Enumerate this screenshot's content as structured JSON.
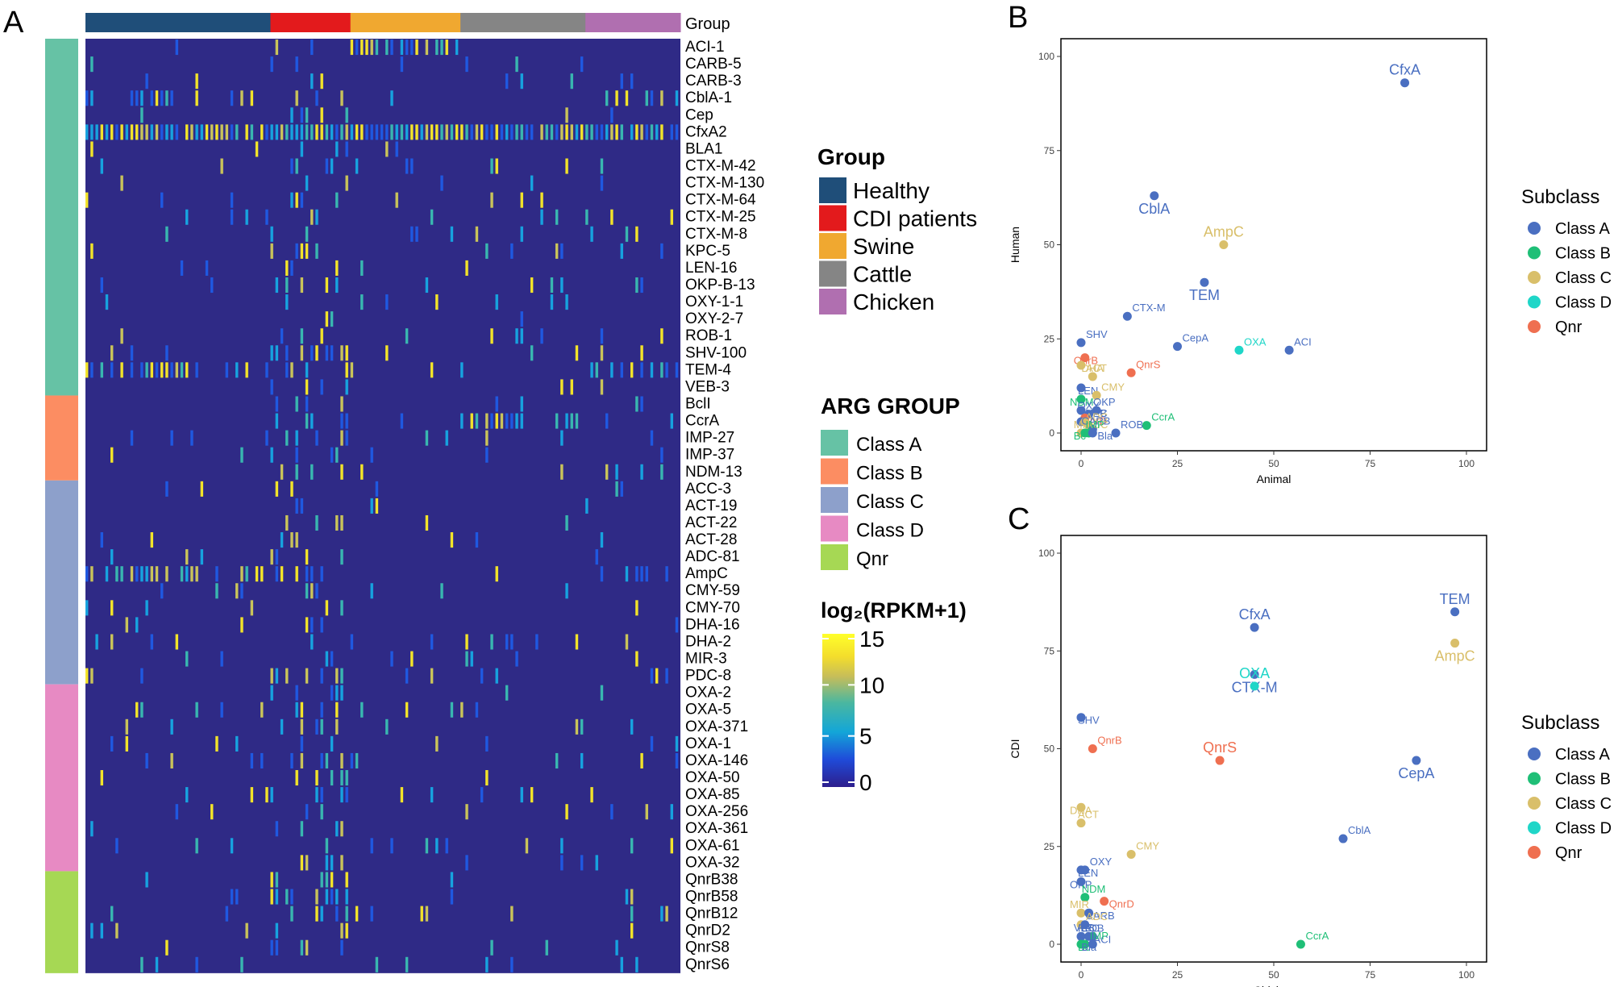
{
  "panel_labels": {
    "a": "A",
    "b": "B",
    "c": "C"
  },
  "heatmap": {
    "group_header": "Group",
    "arg_labels": [
      "ACI-1",
      "CARB-5",
      "CARB-3",
      "CblA-1",
      "Cep",
      "CfxA2",
      "BLA1",
      "CTX-M-42",
      "CTX-M-130",
      "CTX-M-64",
      "CTX-M-25",
      "CTX-M-8",
      "KPC-5",
      "LEN-16",
      "OKP-B-13",
      "OXY-1-1",
      "OXY-2-7",
      "ROB-1",
      "SHV-100",
      "TEM-4",
      "VEB-3",
      "BclI",
      "CcrA",
      "IMP-27",
      "IMP-37",
      "NDM-13",
      "ACC-3",
      "ACT-19",
      "ACT-22",
      "ACT-28",
      "ADC-81",
      "AmpC",
      "CMY-59",
      "CMY-70",
      "DHA-16",
      "DHA-2",
      "MIR-3",
      "PDC-8",
      "OXA-2",
      "OXA-5",
      "OXA-371",
      "OXA-1",
      "OXA-146",
      "OXA-50",
      "OXA-85",
      "OXA-256",
      "OXA-361",
      "OXA-61",
      "OXA-32",
      "QnrB38",
      "QnrB58",
      "QnrB12",
      "QnrD2",
      "QnrS8",
      "QnrS6"
    ],
    "row_class_index": [
      0,
      0,
      0,
      0,
      0,
      0,
      0,
      0,
      0,
      0,
      0,
      0,
      0,
      0,
      0,
      0,
      0,
      0,
      0,
      0,
      0,
      1,
      1,
      1,
      1,
      1,
      2,
      2,
      2,
      2,
      2,
      2,
      2,
      2,
      2,
      2,
      2,
      2,
      3,
      3,
      3,
      3,
      3,
      3,
      3,
      3,
      3,
      3,
      3,
      4,
      4,
      4,
      4,
      4,
      4
    ],
    "groups": [
      {
        "name": "Healthy",
        "color": "#1f4e79",
        "n": 37
      },
      {
        "name": "CDI patients",
        "color": "#e31a1c",
        "n": 16
      },
      {
        "name": "Swine",
        "color": "#f0a830",
        "n": 22
      },
      {
        "name": "Cattle",
        "color": "#858585",
        "n": 25
      },
      {
        "name": "Chicken",
        "color": "#b06fb0",
        "n": 19
      }
    ],
    "arg_group_title": "ARG GROUP",
    "arg_classes": [
      {
        "name": "Class A",
        "color": "#66c2a5"
      },
      {
        "name": "Class B",
        "color": "#fc8d62"
      },
      {
        "name": "Class C",
        "color": "#8da0cb"
      },
      {
        "name": "Class D",
        "color": "#e78ac3"
      },
      {
        "name": "Qnr",
        "color": "#a6d854"
      }
    ],
    "group_legend_title": "Group",
    "colorbar": {
      "title": "log₂(RPKM+1)",
      "ticks": [
        "15",
        "10",
        "5",
        "0"
      ],
      "min": 0,
      "max": 15
    }
  },
  "chart_data": [
    {
      "type": "scatter",
      "panel": "B",
      "xlabel": "Animal",
      "ylabel": "Human",
      "xlim": [
        0,
        100
      ],
      "ylim": [
        0,
        100
      ],
      "xticks": [
        "0",
        "25",
        "50",
        "75",
        "100"
      ],
      "yticks": [
        "0",
        "25",
        "50",
        "75",
        "100"
      ],
      "legend_title": "Subclass",
      "legend": [
        {
          "name": "Class A",
          "color": "#4a6fc1"
        },
        {
          "name": "Class B",
          "color": "#1fbf77"
        },
        {
          "name": "Class C",
          "color": "#d9bf6a"
        },
        {
          "name": "Class D",
          "color": "#1fd6c8"
        },
        {
          "name": "Qnr",
          "color": "#ef6f50"
        }
      ],
      "points": [
        {
          "label": "CfxA",
          "x": 84,
          "y": 93,
          "cls": 0,
          "big": true
        },
        {
          "label": "CblA",
          "x": 19,
          "y": 63,
          "cls": 0,
          "big": true
        },
        {
          "label": "AmpC",
          "x": 37,
          "y": 50,
          "cls": 2,
          "big": true
        },
        {
          "label": "TEM",
          "x": 32,
          "y": 40,
          "cls": 0,
          "big": true
        },
        {
          "label": "CTX-M",
          "x": 12,
          "y": 31,
          "cls": 0
        },
        {
          "label": "CepA",
          "x": 25,
          "y": 23,
          "cls": 0
        },
        {
          "label": "ACI",
          "x": 54,
          "y": 22,
          "cls": 0
        },
        {
          "label": "OXA",
          "x": 41,
          "y": 22,
          "cls": 3
        },
        {
          "label": "SHV",
          "x": 0,
          "y": 24,
          "cls": 0
        },
        {
          "label": "QnrB",
          "x": 1,
          "y": 20,
          "cls": 4
        },
        {
          "label": "QnrS",
          "x": 13,
          "y": 16,
          "cls": 4
        },
        {
          "label": "ACT",
          "x": 0,
          "y": 18,
          "cls": 2
        },
        {
          "label": "DHA",
          "x": 3,
          "y": 15,
          "cls": 2
        },
        {
          "label": "LEN",
          "x": 0,
          "y": 12,
          "cls": 0
        },
        {
          "label": "CMY",
          "x": 4,
          "y": 10,
          "cls": 2
        },
        {
          "label": "NDM",
          "x": 0,
          "y": 9,
          "cls": 1
        },
        {
          "label": "OKP",
          "x": 4,
          "y": 6,
          "cls": 0
        },
        {
          "label": "KPC",
          "x": 0,
          "y": 6,
          "cls": 0
        },
        {
          "label": "OXY",
          "x": 2,
          "y": 5,
          "cls": 0
        },
        {
          "label": "QnrD",
          "x": 1,
          "y": 4,
          "cls": 4
        },
        {
          "label": "VEB",
          "x": 0,
          "y": 3,
          "cls": 0
        },
        {
          "label": "MIR",
          "x": 1,
          "y": 3,
          "cls": 2
        },
        {
          "label": "ADC",
          "x": 2,
          "y": 2,
          "cls": 2
        },
        {
          "label": "CcrA",
          "x": 17,
          "y": 2,
          "cls": 1
        },
        {
          "label": "CARB",
          "x": 3,
          "y": 1,
          "cls": 0
        },
        {
          "label": "ROB",
          "x": 9,
          "y": 0,
          "cls": 0
        },
        {
          "label": "ACC",
          "x": 0,
          "y": 0,
          "cls": 2
        },
        {
          "label": "Bc",
          "x": 1,
          "y": 0,
          "cls": 1
        },
        {
          "label": "IMP",
          "x": 2,
          "y": 0,
          "cls": 1
        },
        {
          "label": "Bla",
          "x": 3,
          "y": 0,
          "cls": 0
        }
      ]
    },
    {
      "type": "scatter",
      "panel": "C",
      "xlabel": "Chicken",
      "ylabel": "CDI",
      "xlim": [
        0,
        100
      ],
      "ylim": [
        0,
        100
      ],
      "xticks": [
        "0",
        "25",
        "50",
        "75",
        "100"
      ],
      "yticks": [
        "0",
        "25",
        "50",
        "75",
        "100"
      ],
      "legend_title": "Subclass",
      "legend": [
        {
          "name": "Class A",
          "color": "#4a6fc1"
        },
        {
          "name": "Class B",
          "color": "#1fbf77"
        },
        {
          "name": "Class C",
          "color": "#d9bf6a"
        },
        {
          "name": "Class D",
          "color": "#1fd6c8"
        },
        {
          "name": "Qnr",
          "color": "#ef6f50"
        }
      ],
      "points": [
        {
          "label": "TEM",
          "x": 97,
          "y": 85,
          "cls": 0,
          "big": true
        },
        {
          "label": "AmpC",
          "x": 97,
          "y": 77,
          "cls": 2,
          "big": true
        },
        {
          "label": "CfxA",
          "x": 45,
          "y": 81,
          "cls": 0,
          "big": true
        },
        {
          "label": "CTX-M",
          "x": 45,
          "y": 69,
          "cls": 0,
          "big": true
        },
        {
          "label": "OXA",
          "x": 45,
          "y": 66,
          "cls": 3,
          "big": true
        },
        {
          "label": "CepA",
          "x": 87,
          "y": 47,
          "cls": 0,
          "big": true
        },
        {
          "label": "QnrS",
          "x": 36,
          "y": 47,
          "cls": 4,
          "big": true
        },
        {
          "label": "SHV",
          "x": 0,
          "y": 58,
          "cls": 0
        },
        {
          "label": "QnrB",
          "x": 3,
          "y": 50,
          "cls": 4
        },
        {
          "label": "DHA",
          "x": 0,
          "y": 35,
          "cls": 2
        },
        {
          "label": "ACT",
          "x": 0,
          "y": 31,
          "cls": 2
        },
        {
          "label": "CblA",
          "x": 68,
          "y": 27,
          "cls": 0
        },
        {
          "label": "CMY",
          "x": 13,
          "y": 23,
          "cls": 2
        },
        {
          "label": "LEN",
          "x": 0,
          "y": 19,
          "cls": 0
        },
        {
          "label": "OXY",
          "x": 1,
          "y": 19,
          "cls": 0
        },
        {
          "label": "OKP",
          "x": 0,
          "y": 16,
          "cls": 0
        },
        {
          "label": "NDM",
          "x": 1,
          "y": 12,
          "cls": 1
        },
        {
          "label": "QnrD",
          "x": 6,
          "y": 11,
          "cls": 4
        },
        {
          "label": "MIR",
          "x": 0,
          "y": 8,
          "cls": 2
        },
        {
          "label": "CARB",
          "x": 2,
          "y": 8,
          "cls": 0
        },
        {
          "label": "ADC",
          "x": 0,
          "y": 5,
          "cls": 2
        },
        {
          "label": "VEB",
          "x": 1,
          "y": 5,
          "cls": 0
        },
        {
          "label": "KPC",
          "x": 0,
          "y": 2,
          "cls": 0
        },
        {
          "label": "ACI",
          "x": 2,
          "y": 2,
          "cls": 0
        },
        {
          "label": "ROB",
          "x": 3,
          "y": 2,
          "cls": 0
        },
        {
          "label": "Bc",
          "x": 0,
          "y": 0,
          "cls": 1
        },
        {
          "label": "IMP",
          "x": 1,
          "y": 0,
          "cls": 1
        },
        {
          "label": "Bla",
          "x": 3,
          "y": 0,
          "cls": 0
        },
        {
          "label": "CcrA",
          "x": 57,
          "y": 0,
          "cls": 1
        }
      ]
    }
  ]
}
